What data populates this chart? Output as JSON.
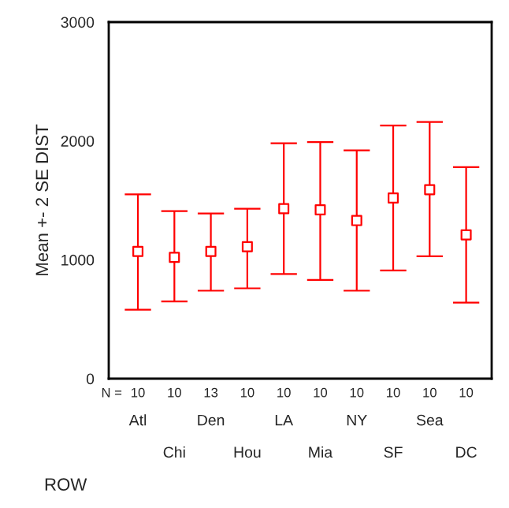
{
  "chart_data": {
    "type": "scatter",
    "xlabel": "ROW",
    "ylabel": "Mean +- 2 SE DIST",
    "categories": [
      "Atl",
      "Chi",
      "Den",
      "Hou",
      "LA",
      "Mia",
      "NY",
      "SF",
      "Sea",
      "DC"
    ],
    "values": [
      1070,
      1020,
      1070,
      1110,
      1430,
      1420,
      1330,
      1520,
      1590,
      1210
    ],
    "errors": [
      [
        580,
        1550
      ],
      [
        650,
        1410
      ],
      [
        740,
        1390
      ],
      [
        760,
        1430
      ],
      [
        880,
        1980
      ],
      [
        830,
        1990
      ],
      [
        740,
        1920
      ],
      [
        910,
        2130
      ],
      [
        1030,
        2160
      ],
      [
        640,
        1780
      ]
    ],
    "color": "#ff0000",
    "marker": "square",
    "ylim": [
      0,
      3000
    ],
    "yticks": [
      0,
      1000,
      2000,
      3000
    ],
    "annotations": [
      "N =",
      "10",
      "10",
      "13",
      "10",
      "10",
      "10",
      "10",
      "10",
      "10",
      "10"
    ]
  }
}
